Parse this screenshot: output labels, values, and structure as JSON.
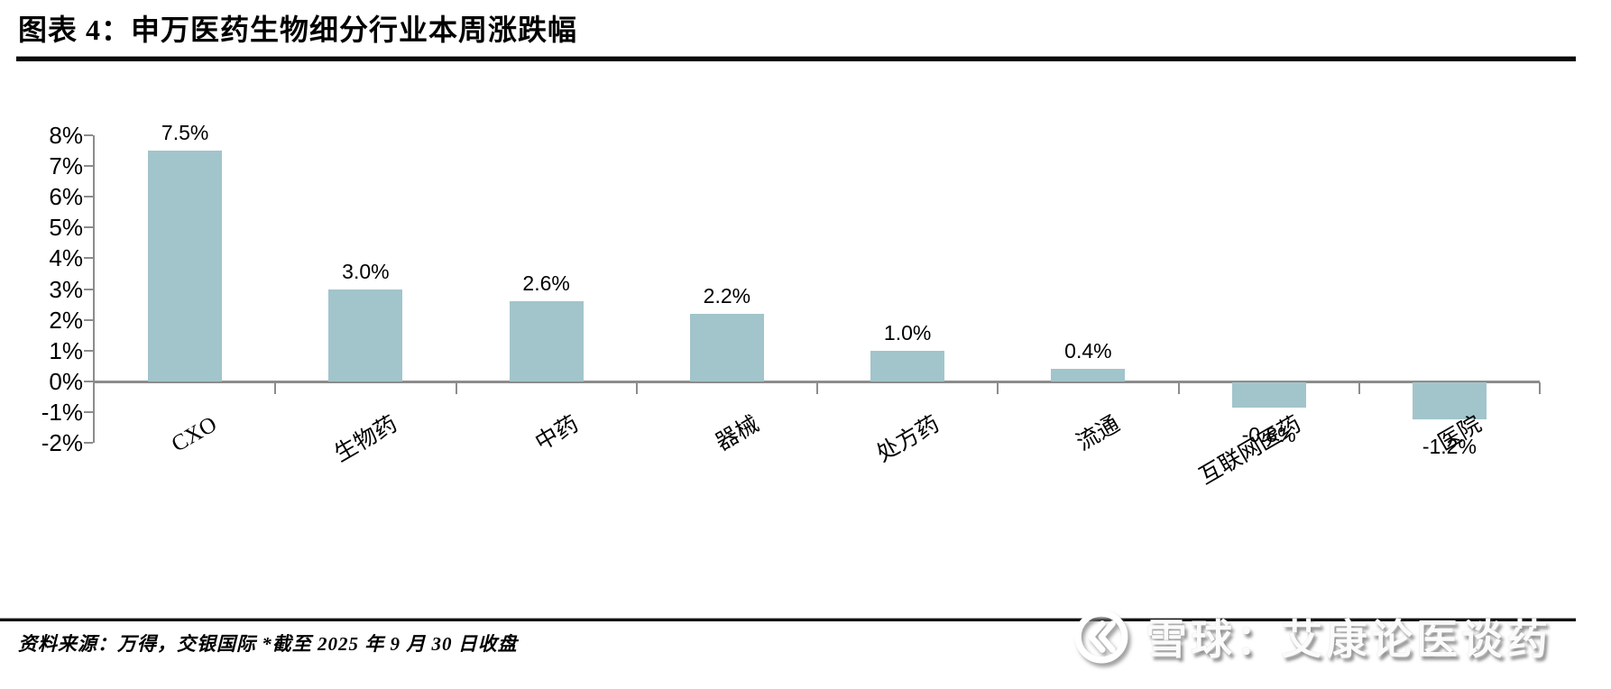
{
  "header": {
    "title": "图表 4：申万医药生物细分行业本周涨跌幅"
  },
  "chart_data": {
    "type": "bar",
    "title": "申万医药生物细分行业本周涨跌幅",
    "categories": [
      "CXO",
      "生物药",
      "中药",
      "器械",
      "处方药",
      "流通",
      "互联网医药",
      "医院"
    ],
    "values": [
      7.5,
      3.0,
      2.6,
      2.2,
      1.0,
      0.4,
      -0.8,
      -1.2
    ],
    "value_labels": [
      "7.5%",
      "3.0%",
      "2.6%",
      "2.2%",
      "1.0%",
      "0.4%",
      "-0.8%",
      "-1.2%"
    ],
    "ylabel": "",
    "xlabel": "",
    "ylim": [
      -2,
      8
    ],
    "ytick_step": 1,
    "ytick_labels": [
      "8%",
      "7%",
      "6%",
      "5%",
      "4%",
      "3%",
      "2%",
      "1%",
      "0%",
      "-1%",
      "-2%"
    ],
    "grid": false,
    "legend_position": "none",
    "bar_color": "#a2c4cb",
    "axis_color": "#8c8c8c",
    "label_color": "#000000"
  },
  "footer": {
    "source_text": "资料来源：万得，交银国际  *截至 2025 年 9 月 30 日收盘"
  },
  "watermark": {
    "logo": "xueqiu-snowball-logo",
    "text": "雪球：艾康论医谈药"
  }
}
